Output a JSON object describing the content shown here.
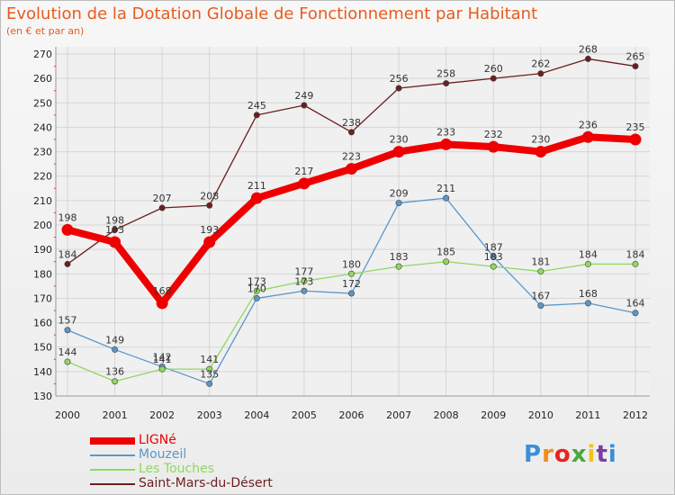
{
  "header": {
    "title": "Evolution de la Dotation Globale de Fonctionnement par Habitant",
    "subtitle": "(en € et par an)"
  },
  "logo": {
    "text": "Proxiti",
    "colors": [
      "#3b8ed8",
      "#f08c1a",
      "#e8231f",
      "#4aa83c",
      "#f0c419",
      "#7b3fa0",
      "#3b8ed8"
    ]
  },
  "chart_data": {
    "type": "line",
    "x": [
      "2000",
      "2001",
      "2002",
      "2003",
      "2004",
      "2005",
      "2006",
      "2007",
      "2008",
      "2009",
      "2010",
      "2011",
      "2012"
    ],
    "ylim": [
      130,
      270
    ],
    "yticks": [
      130,
      140,
      150,
      160,
      170,
      180,
      190,
      200,
      210,
      220,
      230,
      240,
      250,
      260,
      270
    ],
    "grid": true,
    "legend_position": "bottom-left",
    "series": [
      {
        "name": "LIGNé",
        "color": "#ee0000",
        "values": [
          198,
          193,
          168,
          193,
          211,
          217,
          223,
          230,
          233,
          232,
          230,
          236,
          235
        ]
      },
      {
        "name": "Mouzeil",
        "color": "#5b96c8",
        "values": [
          157,
          149,
          142,
          135,
          170,
          173,
          172,
          209,
          211,
          187,
          167,
          168,
          164
        ]
      },
      {
        "name": "Les Touches",
        "color": "#90d860",
        "values": [
          144,
          136,
          141,
          141,
          173,
          177,
          180,
          183,
          185,
          183,
          181,
          184,
          184
        ]
      },
      {
        "name": "Saint-Mars-du-Désert",
        "color": "#6b1f1f",
        "values": [
          184,
          198,
          207,
          208,
          245,
          249,
          238,
          256,
          258,
          260,
          262,
          268,
          265
        ]
      }
    ]
  }
}
